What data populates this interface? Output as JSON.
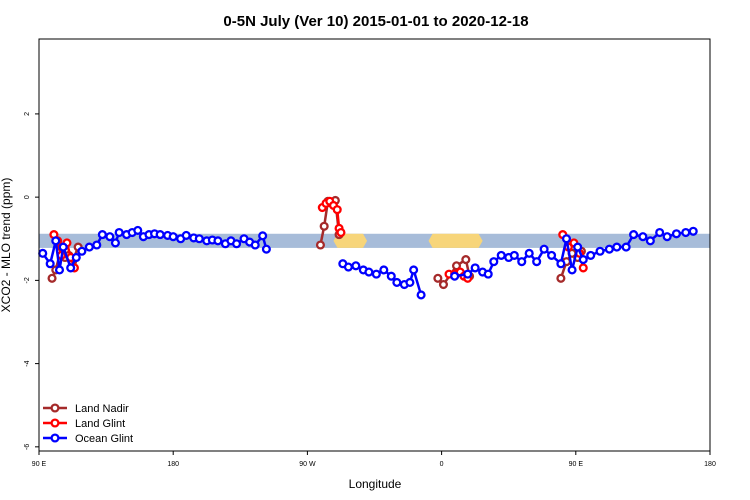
{
  "chart_data": {
    "type": "line",
    "title": "0-5N July (Ver 10)   2015-01-01 to 2020-12-18",
    "xlabel": "Longitude",
    "ylabel": "XCO2 - MLO trend (ppm)",
    "xlim": [
      90,
      450
    ],
    "ylim": [
      -6.1,
      3.8
    ],
    "x_ticks": [
      {
        "value": 90,
        "label": "90 E"
      },
      {
        "value": 162,
        "label": "180"
      },
      {
        "value": 234,
        "label": "90 W"
      },
      {
        "value": 306,
        "label": "0"
      },
      {
        "value": 378,
        "label": "90 E"
      },
      {
        "value": 450,
        "label": "180"
      }
    ],
    "y_ticks": [
      {
        "value": 2,
        "label": "2"
      },
      {
        "value": 0,
        "label": "0"
      },
      {
        "value": -2,
        "label": "-2"
      },
      {
        "value": -4,
        "label": "-4"
      },
      {
        "value": -6,
        "label": "-6"
      }
    ],
    "band": {
      "name": "reference band",
      "ymin": -1.22,
      "ymax": -0.88,
      "color": "#a7bcd9",
      "highlight_color": "#f7d57a",
      "highlights": [
        [
          248,
          266
        ],
        [
          299,
          328
        ]
      ]
    },
    "series": [
      {
        "name": "Land Nadir",
        "color": "#a52a2a",
        "points": [
          [
            97,
            -1.95
          ],
          [
            99,
            -1.75
          ],
          [
            102,
            -1.2
          ],
          [
            104,
            -1.45
          ],
          [
            106,
            -1.4
          ],
          [
            108,
            -1.55
          ],
          [
            111,
            -1.2
          ],
          [
            241,
            -1.15
          ],
          [
            243,
            -0.7
          ],
          [
            245,
            -0.1
          ],
          [
            247,
            -0.15
          ],
          [
            249,
            -0.08
          ],
          [
            251,
            -0.9
          ],
          [
            304,
            -1.95
          ],
          [
            307,
            -2.1
          ],
          [
            314,
            -1.65
          ],
          [
            319,
            -1.5
          ],
          [
            321,
            -1.9
          ],
          [
            370,
            -1.95
          ],
          [
            373,
            -1.55
          ],
          [
            376,
            -1.35
          ],
          [
            379,
            -1.45
          ],
          [
            381,
            -1.3
          ]
        ]
      },
      {
        "name": "Land Glint",
        "color": "#ff0000",
        "points": [
          [
            98,
            -0.9
          ],
          [
            100,
            -1.05
          ],
          [
            102,
            -1.4
          ],
          [
            105,
            -1.1
          ],
          [
            107,
            -1.45
          ],
          [
            109,
            -1.7
          ],
          [
            242,
            -0.25
          ],
          [
            244,
            -0.15
          ],
          [
            246,
            -0.1
          ],
          [
            248,
            -0.2
          ],
          [
            250,
            -0.3
          ],
          [
            251,
            -0.75
          ],
          [
            252,
            -0.85
          ],
          [
            310,
            -1.85
          ],
          [
            313,
            -1.85
          ],
          [
            316,
            -1.8
          ],
          [
            318,
            -1.9
          ],
          [
            320,
            -1.95
          ],
          [
            371,
            -0.9
          ],
          [
            374,
            -1.2
          ],
          [
            377,
            -1.1
          ],
          [
            380,
            -1.35
          ],
          [
            382,
            -1.7
          ]
        ]
      },
      {
        "name": "Ocean Glint",
        "color": "#0000ff",
        "points": [
          [
            92,
            -1.35
          ],
          [
            96,
            -1.6
          ],
          [
            99,
            -1.05
          ],
          [
            101,
            -1.75
          ],
          [
            103,
            -1.2
          ],
          [
            107,
            -1.7
          ],
          [
            110,
            -1.45
          ],
          [
            113,
            -1.3
          ],
          [
            117,
            -1.2
          ],
          [
            121,
            -1.15
          ],
          [
            124,
            -0.9
          ],
          [
            128,
            -0.95
          ],
          [
            131,
            -1.1
          ],
          [
            133,
            -0.85
          ],
          [
            137,
            -0.9
          ],
          [
            140,
            -0.85
          ],
          [
            143,
            -0.8
          ],
          [
            146,
            -0.95
          ],
          [
            149,
            -0.9
          ],
          [
            152,
            -0.88
          ],
          [
            155,
            -0.9
          ],
          [
            159,
            -0.92
          ],
          [
            162,
            -0.95
          ],
          [
            166,
            -1.0
          ],
          [
            169,
            -0.92
          ],
          [
            173,
            -0.98
          ],
          [
            176,
            -1.0
          ],
          [
            180,
            -1.05
          ],
          [
            183,
            -1.03
          ],
          [
            186,
            -1.05
          ],
          [
            190,
            -1.12
          ],
          [
            193,
            -1.05
          ],
          [
            196,
            -1.12
          ],
          [
            200,
            -1.0
          ],
          [
            203,
            -1.08
          ],
          [
            206,
            -1.15
          ],
          [
            210,
            -0.93
          ],
          [
            212,
            -1.25
          ],
          [
            253,
            -1.6
          ],
          [
            256,
            -1.68
          ],
          [
            260,
            -1.65
          ],
          [
            264,
            -1.75
          ],
          [
            267,
            -1.8
          ],
          [
            271,
            -1.85
          ],
          [
            275,
            -1.75
          ],
          [
            279,
            -1.9
          ],
          [
            282,
            -2.05
          ],
          [
            286,
            -2.1
          ],
          [
            289,
            -2.05
          ],
          [
            291,
            -1.75
          ],
          [
            295,
            -2.35
          ],
          [
            313,
            -1.9
          ],
          [
            320,
            -1.85
          ],
          [
            324,
            -1.7
          ],
          [
            328,
            -1.8
          ],
          [
            331,
            -1.85
          ],
          [
            334,
            -1.55
          ],
          [
            338,
            -1.4
          ],
          [
            342,
            -1.45
          ],
          [
            345,
            -1.4
          ],
          [
            349,
            -1.55
          ],
          [
            353,
            -1.35
          ],
          [
            357,
            -1.55
          ],
          [
            361,
            -1.25
          ],
          [
            365,
            -1.4
          ],
          [
            370,
            -1.6
          ],
          [
            373,
            -1.0
          ],
          [
            376,
            -1.75
          ],
          [
            379,
            -1.2
          ],
          [
            382,
            -1.5
          ],
          [
            386,
            -1.4
          ],
          [
            391,
            -1.3
          ],
          [
            396,
            -1.25
          ],
          [
            400,
            -1.2
          ],
          [
            405,
            -1.2
          ],
          [
            409,
            -0.9
          ],
          [
            414,
            -0.95
          ],
          [
            418,
            -1.05
          ],
          [
            423,
            -0.85
          ],
          [
            427,
            -0.95
          ],
          [
            432,
            -0.88
          ],
          [
            437,
            -0.85
          ],
          [
            441,
            -0.82
          ]
        ]
      }
    ],
    "legend": {
      "position": "bottom-left",
      "entries": [
        "Land Nadir",
        "Land Glint",
        "Ocean Glint"
      ]
    }
  }
}
